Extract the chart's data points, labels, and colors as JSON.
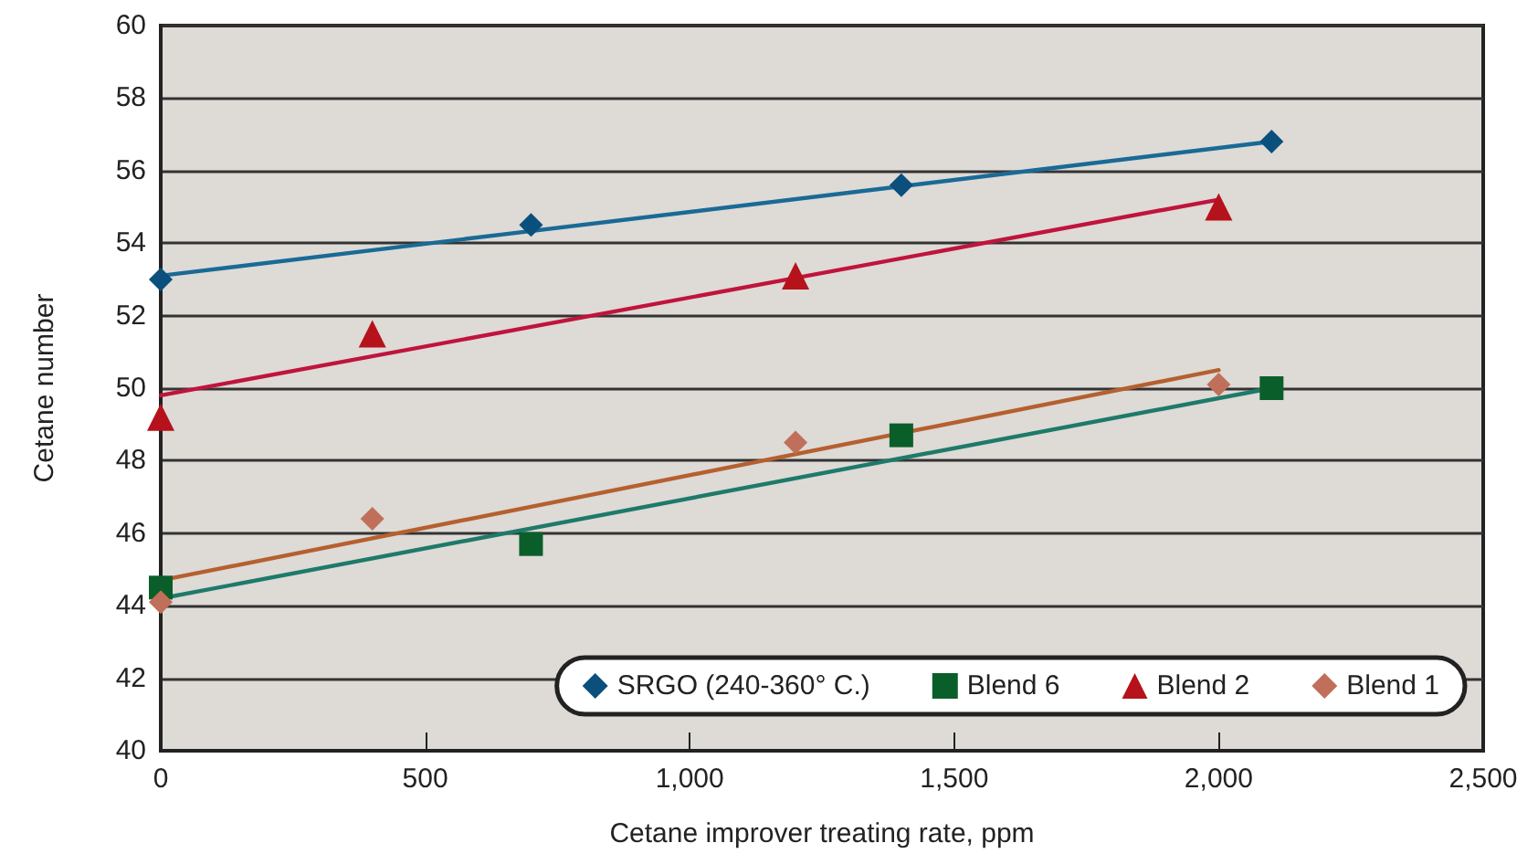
{
  "chart_data": {
    "type": "scatter",
    "xlabel": "Cetane improver treating rate, ppm",
    "ylabel": "Cetane number",
    "xlim": [
      0,
      2500
    ],
    "xticks": [
      0,
      500,
      {
        "value": 1000,
        "label": "1,000"
      },
      {
        "value": 1500,
        "label": "1,500"
      },
      {
        "value": 2000,
        "label": "2,000"
      },
      {
        "value": 2500,
        "label": "2,500"
      }
    ],
    "ylim": [
      40,
      60
    ],
    "yticks": [
      40,
      42,
      44,
      46,
      48,
      50,
      52,
      54,
      56,
      58,
      60
    ],
    "grid": "y",
    "legend": "bottom right",
    "series": [
      {
        "name": "SRGO (240-360° C.)",
        "marker": "diamond",
        "color": "#0b4f7d",
        "x": [
          0,
          700,
          1400,
          2100
        ],
        "values": [
          53.0,
          54.5,
          55.6,
          56.8
        ]
      },
      {
        "name": "Blend 6",
        "marker": "square",
        "color": "#0a5e2a",
        "x": [
          0,
          700,
          1400,
          2100
        ],
        "values": [
          44.5,
          45.7,
          48.7,
          50.0
        ]
      },
      {
        "name": "Blend 2",
        "marker": "triangle",
        "color": "#b5121b",
        "x": [
          0,
          400,
          1200,
          2000
        ],
        "values": [
          49.2,
          51.5,
          53.1,
          55.0
        ]
      },
      {
        "name": "Blend 1",
        "marker": "diamond",
        "color": "#c0705a",
        "x": [
          0,
          400,
          1200,
          2000
        ],
        "values": [
          44.1,
          46.4,
          48.5,
          50.1
        ]
      },
      {
        "type": "line",
        "marker": "none",
        "color": "#1a6a96",
        "x": [
          0,
          2100
        ],
        "values": [
          53.1,
          56.8
        ]
      },
      {
        "type": "line",
        "marker": "none",
        "color": "#1e7a6a",
        "x": [
          0,
          2100
        ],
        "values": [
          44.2,
          50.0
        ]
      },
      {
        "type": "line",
        "marker": "none",
        "color": "#c0143c",
        "x": [
          0,
          2000
        ],
        "values": [
          49.8,
          55.2
        ]
      },
      {
        "type": "line",
        "marker": "none",
        "color": "#b5602f",
        "x": [
          0,
          2000
        ],
        "values": [
          44.7,
          50.5
        ]
      }
    ]
  }
}
